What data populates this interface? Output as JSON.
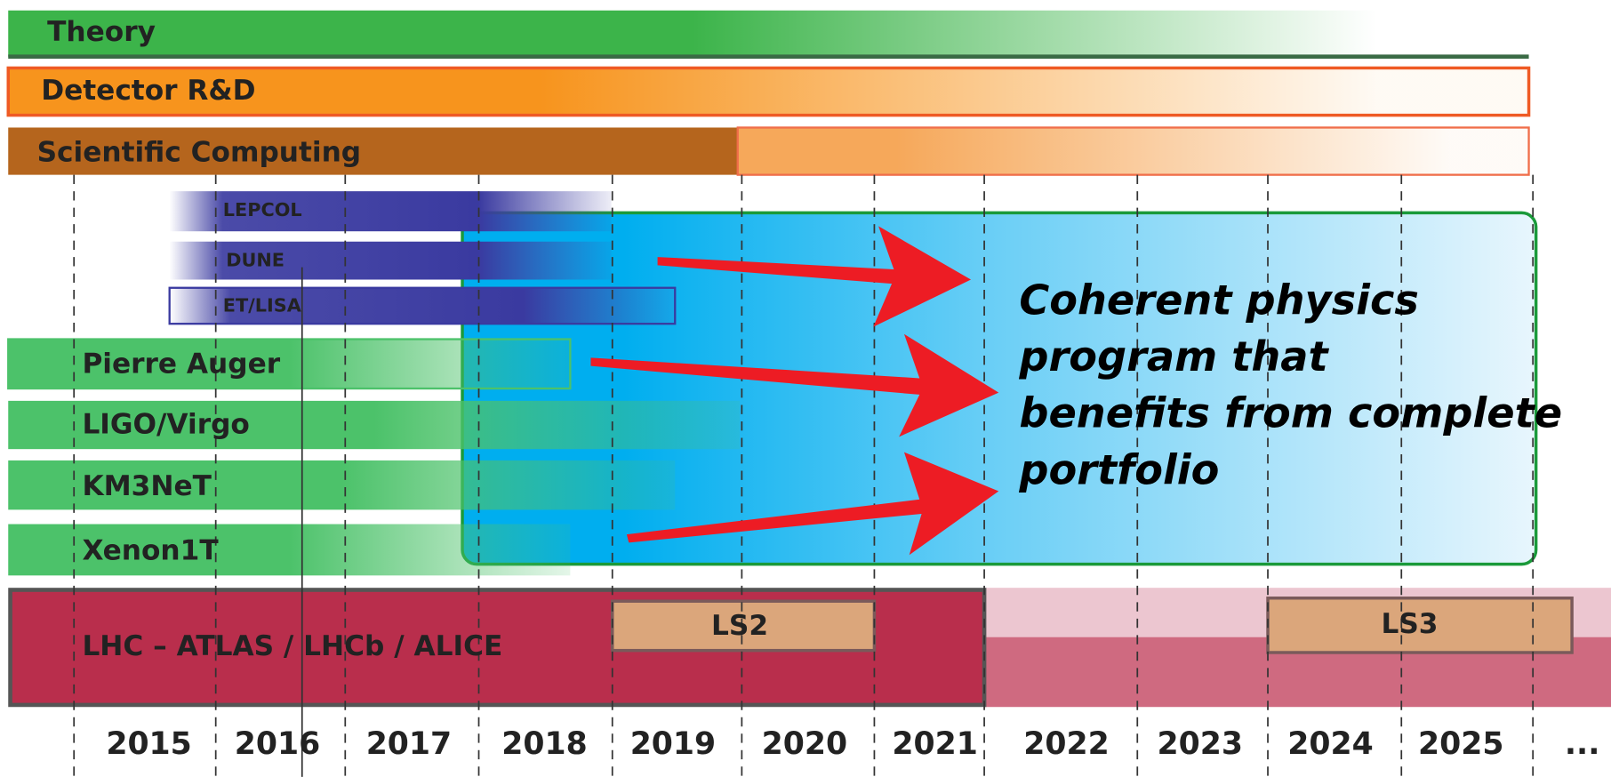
{
  "bars": [
    "Theory",
    "Detector R&D",
    "Scientific Computing",
    "LEPCOL",
    "DUNE",
    "ET/LISA",
    "Pierre Auger",
    "LIGO/Virgo",
    "KM3NeT",
    "Xenon1T",
    "LHC – ATLAS / LHCb / ALICE"
  ],
  "shutdowns": [
    "LS2",
    "LS3"
  ],
  "callout": [
    "Coherent physics",
    "program that",
    "benefits from complete",
    "portfolio"
  ],
  "years": [
    "2015",
    "2016",
    "2017",
    "2018",
    "2019",
    "2020",
    "2021",
    "2022",
    "2023",
    "2024",
    "2025",
    "..."
  ]
}
